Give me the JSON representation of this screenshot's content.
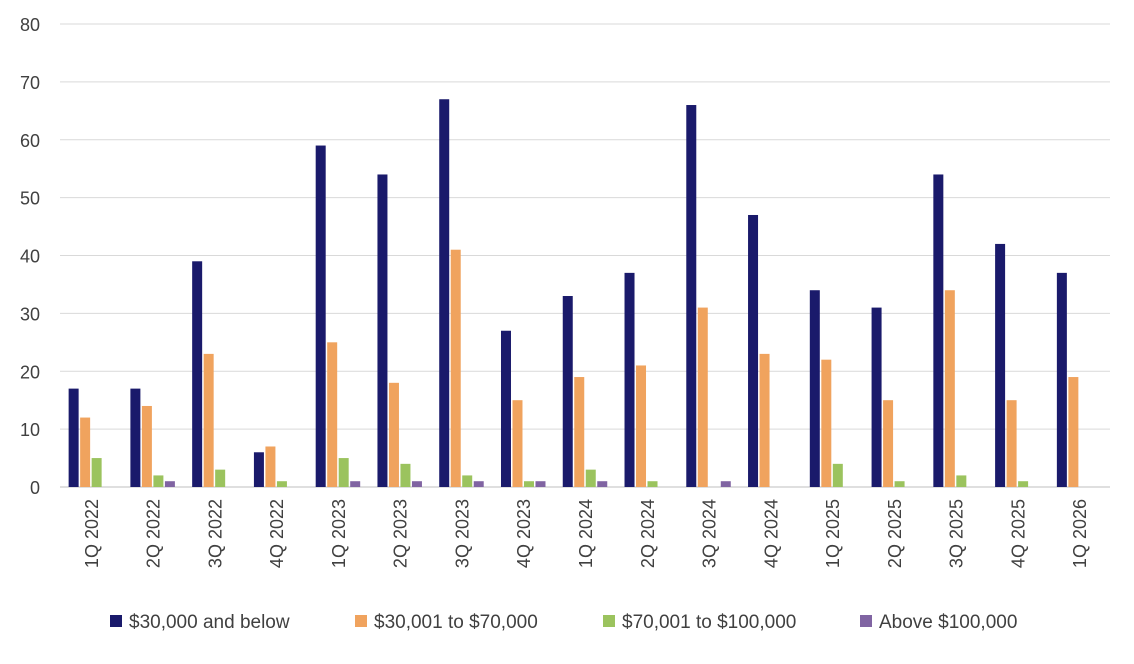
{
  "chart_data": {
    "type": "bar",
    "title": "",
    "xlabel": "",
    "ylabel": "",
    "ylim": [
      0,
      80
    ],
    "yticks": [
      0,
      10,
      20,
      30,
      40,
      50,
      60,
      70,
      80
    ],
    "grid": "horizontal",
    "legend_position": "bottom",
    "categories": [
      "1Q 2022",
      "2Q 2022",
      "3Q 2022",
      "4Q 2022",
      "1Q 2023",
      "2Q 2023",
      "3Q 2023",
      "4Q 2023",
      "1Q 2024",
      "2Q 2024",
      "3Q 2024",
      "4Q 2024",
      "1Q 2025",
      "2Q 2025",
      "3Q 2025",
      "4Q 2025",
      "1Q 2026"
    ],
    "series": [
      {
        "name": "$30,000 and below",
        "color": "#1a1a6b",
        "values": [
          17,
          17,
          39,
          6,
          59,
          54,
          67,
          27,
          33,
          37,
          66,
          47,
          34,
          31,
          54,
          42,
          37
        ]
      },
      {
        "name": "$30,001 to $70,000",
        "color": "#f0a35e",
        "values": [
          12,
          14,
          23,
          7,
          25,
          18,
          41,
          15,
          19,
          21,
          31,
          23,
          22,
          15,
          34,
          15,
          19
        ]
      },
      {
        "name": "$70,001 to $100,000",
        "color": "#9bc35e",
        "values": [
          5,
          2,
          3,
          1,
          5,
          4,
          2,
          1,
          3,
          1,
          0,
          0,
          4,
          1,
          2,
          1,
          0
        ]
      },
      {
        "name": "Above $100,000",
        "color": "#8064a2",
        "values": [
          0,
          1,
          0,
          0,
          1,
          1,
          1,
          1,
          1,
          0,
          1,
          0,
          0,
          0,
          0,
          0,
          0
        ]
      }
    ]
  }
}
